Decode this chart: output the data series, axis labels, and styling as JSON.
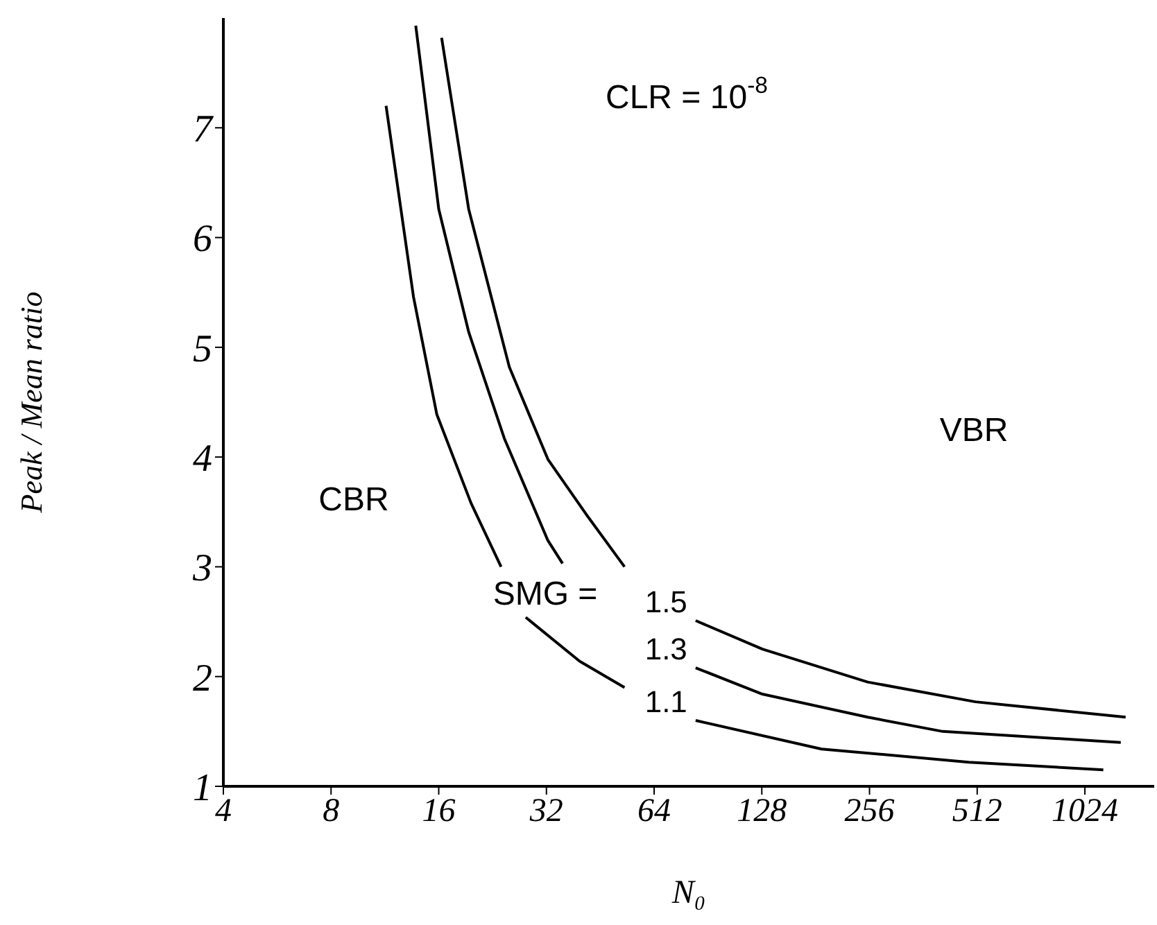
{
  "chart_data": {
    "type": "line",
    "xlabel": "N₀",
    "ylabel": "Peak / Mean ratio",
    "log": "x",
    "xlim": [
      4,
      1600
    ],
    "xticks": [
      4,
      8,
      16,
      32,
      64,
      128,
      256,
      512,
      1024
    ],
    "ylim": [
      1,
      8
    ],
    "yticks": [
      1,
      2,
      3,
      4,
      5,
      6,
      7
    ],
    "grid": false,
    "legend": false,
    "annotations": [
      "CLR = 10$^{-8}$",
      "CBR",
      "VBR",
      "SMG ="
    ],
    "series": [
      {
        "name": "1.1",
        "color": "#000000",
        "x": [
          11.4,
          13.6,
          15.8,
          19.7,
          23.9,
          26,
          28.0,
          39.6,
          52.9,
          66,
          83.6,
          188,
          485,
          1153
        ],
        "values": [
          7.2,
          5.46,
          4.39,
          3.58,
          3.0,
          null,
          2.54,
          2.14,
          1.9,
          null,
          1.6,
          1.34,
          1.22,
          1.15
        ]
      },
      {
        "name": "1.3",
        "color": "#000000",
        "x": [
          13.8,
          16.0,
          19.4,
          24.4,
          32.3,
          35.5,
          55,
          83.6,
          128.5,
          253,
          410,
          1290
        ],
        "values": [
          7.93,
          6.26,
          5.14,
          4.17,
          3.24,
          3.03,
          null,
          2.08,
          1.84,
          1.63,
          1.5,
          1.4
        ]
      },
      {
        "name": "1.5",
        "color": "#000000",
        "x": [
          16.3,
          19.4,
          25.2,
          32.3,
          41.3,
          52.9,
          66,
          83.6,
          128.5,
          253,
          506,
          1331
        ],
        "values": [
          7.82,
          6.26,
          4.82,
          3.98,
          3.48,
          3.0,
          null,
          2.51,
          2.25,
          1.95,
          1.77,
          1.63
        ]
      }
    ]
  }
}
